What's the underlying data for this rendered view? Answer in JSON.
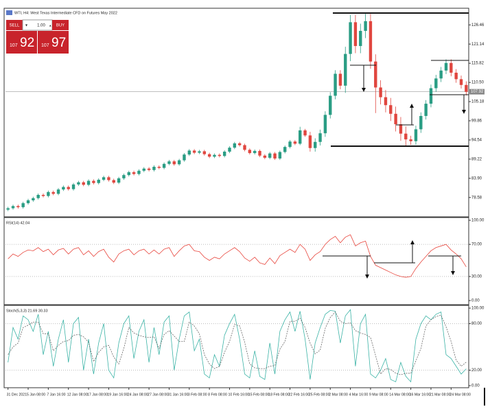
{
  "header": {
    "title": "WTI, H4: West Texas Intermediate CFD on Futures May 2022"
  },
  "trade_panel": {
    "sell": "SELL",
    "lots": "1.00",
    "buy": "BUY",
    "bid_prefix": "107",
    "bid_digits": "92",
    "ask_prefix": "107",
    "ask_digits": "97"
  },
  "chart_data": [
    {
      "type": "candlestick",
      "up_color": "#2a9d84",
      "down_color": "#e0463f",
      "ylim": [
        73.4,
        130.7
      ],
      "yticks": [
        126.46,
        121.14,
        115.82,
        {
          "value": 110.5,
          "label": "110.50"
        },
        105.18,
        99.86,
        94.54,
        89.22,
        {
          "value": 83.9,
          "label": "83.90"
        },
        78.58
      ],
      "current_price": 107.92,
      "ohlc": [
        [
          75.2,
          76.0,
          74.8,
          75.6
        ],
        [
          75.6,
          76.6,
          75.2,
          76.2
        ],
        [
          76.2,
          76.6,
          75.5,
          75.9
        ],
        [
          75.9,
          77.4,
          75.5,
          77.0
        ],
        [
          77.0,
          78.2,
          76.6,
          77.8
        ],
        [
          77.8,
          78.8,
          77.4,
          78.4
        ],
        [
          78.4,
          79.7,
          78.0,
          79.3
        ],
        [
          79.3,
          79.7,
          78.6,
          79.0
        ],
        [
          79.0,
          80.5,
          78.6,
          80.1
        ],
        [
          80.1,
          80.5,
          79.2,
          79.6
        ],
        [
          79.6,
          81.2,
          79.2,
          80.8
        ],
        [
          80.8,
          81.9,
          80.4,
          81.5
        ],
        [
          81.5,
          81.9,
          80.5,
          80.9
        ],
        [
          80.9,
          82.6,
          80.5,
          82.2
        ],
        [
          82.2,
          83.2,
          81.8,
          82.8
        ],
        [
          82.8,
          83.2,
          81.7,
          82.1
        ],
        [
          82.1,
          83.6,
          81.7,
          83.2
        ],
        [
          83.2,
          83.6,
          82.2,
          82.6
        ],
        [
          82.6,
          83.9,
          82.2,
          83.5
        ],
        [
          83.5,
          84.6,
          83.1,
          84.2
        ],
        [
          84.2,
          84.6,
          83.0,
          83.4
        ],
        [
          83.4,
          83.8,
          82.3,
          82.7
        ],
        [
          82.7,
          84.3,
          82.3,
          83.9
        ],
        [
          83.9,
          85.2,
          83.5,
          84.8
        ],
        [
          84.8,
          86.0,
          84.4,
          85.6
        ],
        [
          85.6,
          86.0,
          84.7,
          85.1
        ],
        [
          85.1,
          86.4,
          84.7,
          86.0
        ],
        [
          86.0,
          87.0,
          85.6,
          86.6
        ],
        [
          86.6,
          87.0,
          85.8,
          86.2
        ],
        [
          86.2,
          87.5,
          85.8,
          87.1
        ],
        [
          87.1,
          87.5,
          86.4,
          86.8
        ],
        [
          86.8,
          88.3,
          86.4,
          87.9
        ],
        [
          87.9,
          89.0,
          87.5,
          88.6
        ],
        [
          88.6,
          89.0,
          87.4,
          87.8
        ],
        [
          87.8,
          89.3,
          87.4,
          88.9
        ],
        [
          88.9,
          90.9,
          88.5,
          90.5
        ],
        [
          90.5,
          92.0,
          90.1,
          91.6
        ],
        [
          91.6,
          92.0,
          90.6,
          91.0
        ],
        [
          91.0,
          91.8,
          90.6,
          91.4
        ],
        [
          91.4,
          91.8,
          90.2,
          90.6
        ],
        [
          90.6,
          91.0,
          89.5,
          89.9
        ],
        [
          89.9,
          90.8,
          89.5,
          90.4
        ],
        [
          90.4,
          90.8,
          89.7,
          90.1
        ],
        [
          90.1,
          91.7,
          89.7,
          91.3
        ],
        [
          91.3,
          92.8,
          90.9,
          92.4
        ],
        [
          92.4,
          94.0,
          92.0,
          93.6
        ],
        [
          93.6,
          94.0,
          92.7,
          93.1
        ],
        [
          93.1,
          93.5,
          91.4,
          91.8
        ],
        [
          91.8,
          92.2,
          90.5,
          90.9
        ],
        [
          90.9,
          91.9,
          90.5,
          91.5
        ],
        [
          91.5,
          91.9,
          89.8,
          90.2
        ],
        [
          90.2,
          90.6,
          89.2,
          89.6
        ],
        [
          89.6,
          91.2,
          89.2,
          90.8
        ],
        [
          90.8,
          91.2,
          89.0,
          89.4
        ],
        [
          89.4,
          91.6,
          89.0,
          91.2
        ],
        [
          91.2,
          93.0,
          90.8,
          92.6
        ],
        [
          92.6,
          94.5,
          92.2,
          94.1
        ],
        [
          94.1,
          94.5,
          93.1,
          93.5
        ],
        [
          93.5,
          98.2,
          93.1,
          97.2
        ],
        [
          97.2,
          97.6,
          95.4,
          95.8
        ],
        [
          95.8,
          96.8,
          91.3,
          92.3
        ],
        [
          92.3,
          95.0,
          91.3,
          94.0
        ],
        [
          94.0,
          97.4,
          93.0,
          96.4
        ],
        [
          96.4,
          102.5,
          95.4,
          101.5
        ],
        [
          101.5,
          107.8,
          100.5,
          106.8
        ],
        [
          106.8,
          113.9,
          105.8,
          112.9
        ],
        [
          112.9,
          113.9,
          108.6,
          109.6
        ],
        [
          109.6,
          120.4,
          107.6,
          118.4
        ],
        [
          118.4,
          129.2,
          116.4,
          127.2
        ],
        [
          127.2,
          129.2,
          118.6,
          120.6
        ],
        [
          120.6,
          126.8,
          118.6,
          124.8
        ],
        [
          124.8,
          129.5,
          122.8,
          127.5
        ],
        [
          127.5,
          129.5,
          114.3,
          116.3
        ],
        [
          116.3,
          118.3,
          102.0,
          109.1
        ],
        [
          109.1,
          111.1,
          104.4,
          106.4
        ],
        [
          106.4,
          108.4,
          102.2,
          104.2
        ],
        [
          104.2,
          106.2,
          99.8,
          101.8
        ],
        [
          101.8,
          103.8,
          96.9,
          98.9
        ],
        [
          98.9,
          100.9,
          94.3,
          96.3
        ],
        [
          96.3,
          98.3,
          92.7,
          94.7
        ],
        [
          94.7,
          95.7,
          93.2,
          94.2
        ],
        [
          94.2,
          98.5,
          93.2,
          97.5
        ],
        [
          97.5,
          102.2,
          96.5,
          101.2
        ],
        [
          101.2,
          105.6,
          100.2,
          104.6
        ],
        [
          104.6,
          109.9,
          103.6,
          108.9
        ],
        [
          108.9,
          112.6,
          107.9,
          111.6
        ],
        [
          111.6,
          114.8,
          110.6,
          113.8
        ],
        [
          113.8,
          116.9,
          112.8,
          115.9
        ],
        [
          115.9,
          116.9,
          112.2,
          113.2
        ],
        [
          113.2,
          114.2,
          110.4,
          111.4
        ],
        [
          111.4,
          112.4,
          108.8,
          109.8
        ],
        [
          109.8,
          110.8,
          106.9,
          107.9
        ]
      ]
    },
    {
      "type": "line",
      "title": "RSI(14) 42.04",
      "color": "#e8453c",
      "ylim": [
        0,
        100
      ],
      "yticks": [
        {
          "value": 100,
          "label": "100.00"
        },
        {
          "value": 70,
          "label": "70.00"
        },
        {
          "value": 30,
          "label": "30.00"
        },
        {
          "value": 0,
          "label": "0.00"
        }
      ],
      "values": [
        52,
        58,
        55,
        60,
        63,
        62,
        66,
        61,
        64,
        57,
        63,
        65,
        58,
        64,
        66,
        57,
        62,
        55,
        61,
        64,
        54,
        48,
        58,
        62,
        64,
        57,
        62,
        64,
        58,
        63,
        58,
        64,
        66,
        55,
        62,
        68,
        70,
        62,
        61,
        54,
        50,
        54,
        52,
        58,
        62,
        66,
        61,
        53,
        49,
        54,
        47,
        45,
        53,
        46,
        56,
        60,
        64,
        60,
        70,
        64,
        50,
        57,
        61,
        70,
        76,
        80,
        72,
        79,
        82,
        68,
        72,
        74,
        55,
        44,
        41,
        38,
        35,
        32,
        30,
        29,
        30,
        40,
        48,
        55,
        62,
        66,
        68,
        70,
        63,
        58,
        52,
        42.04
      ]
    },
    {
      "type": "line",
      "title": "Stoch(5,3,3) 21.69 30.33",
      "ylim": [
        0,
        100
      ],
      "yticks": [
        {
          "value": 100,
          "label": "100.00"
        },
        {
          "value": 80,
          "label": "80.00"
        },
        {
          "value": 20,
          "label": "20.00"
        },
        {
          "value": 0,
          "label": "0.00"
        }
      ],
      "series": [
        {
          "color": "#3bb3a6",
          "dash": false,
          "values": [
            30,
            75,
            60,
            90,
            85,
            70,
            92,
            40,
            70,
            25,
            60,
            85,
            30,
            80,
            88,
            20,
            60,
            15,
            55,
            80,
            20,
            10,
            55,
            80,
            90,
            35,
            70,
            85,
            30,
            75,
            40,
            82,
            90,
            20,
            60,
            90,
            95,
            45,
            60,
            15,
            10,
            40,
            25,
            65,
            80,
            92,
            60,
            15,
            10,
            45,
            12,
            8,
            55,
            15,
            70,
            85,
            95,
            70,
            96,
            60,
            8,
            55,
            75,
            92,
            97,
            96,
            55,
            90,
            98,
            25,
            80,
            92,
            15,
            10,
            20,
            35,
            8,
            5,
            30,
            12,
            5,
            60,
            80,
            90,
            85,
            92,
            95,
            40,
            35,
            25,
            15,
            21.69
          ]
        },
        {
          "color": "#666666",
          "dash": true,
          "values": [
            40,
            50,
            55,
            75,
            78,
            82,
            82,
            67,
            67,
            45,
            52,
            57,
            58,
            65,
            66,
            63,
            56,
            31,
            43,
            50,
            52,
            37,
            28,
            48,
            75,
            68,
            65,
            63,
            62,
            63,
            48,
            66,
            71,
            64,
            57,
            57,
            82,
            77,
            67,
            40,
            28,
            22,
            25,
            43,
            57,
            79,
            77,
            56,
            28,
            23,
            22,
            22,
            25,
            26,
            47,
            57,
            83,
            83,
            87,
            75,
            55,
            41,
            46,
            74,
            88,
            95,
            83,
            80,
            81,
            71,
            68,
            66,
            62,
            39,
            15,
            22,
            21,
            16,
            14,
            16,
            16,
            32,
            48,
            77,
            85,
            89,
            91,
            76,
            57,
            33,
            25,
            30.33
          ]
        }
      ],
      "categories": [
        "31 Dec 2021",
        null,
        null,
        null,
        "5 Jan 08:00",
        null,
        null,
        null,
        "7 Jan 16:00",
        null,
        null,
        null,
        "12 Jan 08:00",
        null,
        null,
        null,
        "17 Jan 08:00",
        null,
        null,
        null,
        "19 Jan 16:00",
        null,
        null,
        null,
        "24 Jan 08:00",
        null,
        null,
        null,
        "27 Jan 08:00",
        null,
        null,
        null,
        "31 Jan 16:00",
        null,
        null,
        null,
        "3 Feb 08:00",
        null,
        null,
        null,
        "8 Feb 08:00",
        null,
        null,
        null,
        "10 Feb 16:00",
        null,
        null,
        null,
        "15 Feb 08:00",
        null,
        null,
        null,
        "18 Feb 08:00",
        null,
        null,
        null,
        "22 Feb 16:00",
        null,
        null,
        null,
        "25 Feb 08:00",
        null,
        null,
        null,
        "2 Mar 08:00",
        null,
        null,
        null,
        "4 Mar 16:00",
        null,
        null,
        null,
        "9 Mar 08:00",
        null,
        null,
        null,
        "14 Mar 08:00",
        null,
        null,
        null,
        "16 Mar 16:00",
        null,
        null,
        null,
        "21 Mar 08:00",
        null,
        null,
        null,
        "24 Mar 08:00",
        null,
        null,
        null
      ]
    }
  ]
}
